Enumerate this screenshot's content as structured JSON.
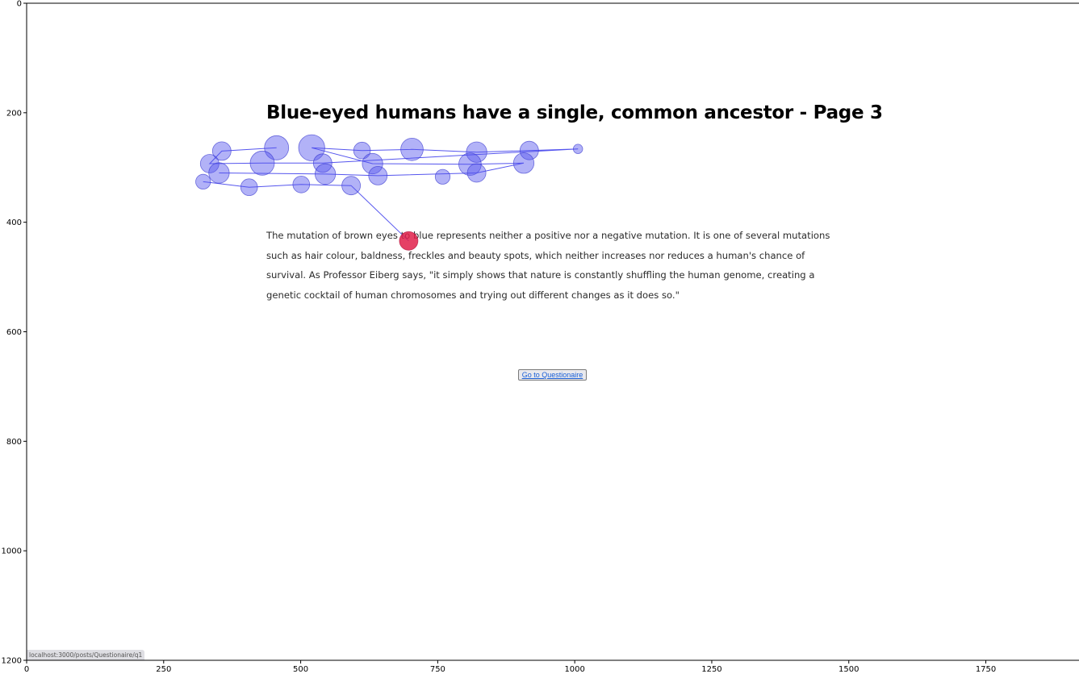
{
  "page": {
    "headline": "Blue-eyed humans have a single, common ancestor - Page 3",
    "body_text": "The mutation of brown eyes to blue represents neither a positive nor a negative mutation. It is one of several mutations such as hair colour, baldness, freckles and beauty spots, which neither increases nor reduces a human's chance of survival. As Professor Eiberg says, \"it simply shows that nature is constantly shuffling the human genome, creating a genetic cocktail of human chromosomes and trying out different changes as it does so.\"",
    "button_label": "Go to Questionaire",
    "status_url": "localhost:3000/posts/Questionaire/q1"
  },
  "chart_data": {
    "type": "scatter",
    "xlim": [
      0,
      1920
    ],
    "ylim": [
      1200,
      0
    ],
    "x_ticks": [
      0,
      250,
      500,
      750,
      1000,
      1250,
      1500,
      1750
    ],
    "y_ticks": [
      0,
      200,
      400,
      600,
      800,
      1000,
      1200
    ],
    "fixation_color": "#5555ee",
    "last_fixation_color": "#e0204a",
    "fixations": [
      {
        "x": 1006,
        "y": 266,
        "r": 5
      },
      {
        "x": 917,
        "y": 269,
        "r": 10
      },
      {
        "x": 821,
        "y": 272,
        "r": 11
      },
      {
        "x": 703,
        "y": 267,
        "r": 12
      },
      {
        "x": 612,
        "y": 269,
        "r": 9
      },
      {
        "x": 520,
        "y": 264,
        "r": 14
      },
      {
        "x": 456,
        "y": 264,
        "r": 13
      },
      {
        "x": 356,
        "y": 270,
        "r": 10
      },
      {
        "x": 334,
        "y": 293,
        "r": 10
      },
      {
        "x": 430,
        "y": 292,
        "r": 13
      },
      {
        "x": 540,
        "y": 292,
        "r": 10
      },
      {
        "x": 631,
        "y": 293,
        "r": 11
      },
      {
        "x": 809,
        "y": 294,
        "r": 12
      },
      {
        "x": 907,
        "y": 292,
        "r": 11
      },
      {
        "x": 351,
        "y": 310,
        "r": 11
      },
      {
        "x": 545,
        "y": 312,
        "r": 11
      },
      {
        "x": 641,
        "y": 315,
        "r": 10
      },
      {
        "x": 759,
        "y": 317,
        "r": 8
      },
      {
        "x": 821,
        "y": 310,
        "r": 10
      },
      {
        "x": 322,
        "y": 326,
        "r": 8
      },
      {
        "x": 406,
        "y": 336,
        "r": 9
      },
      {
        "x": 501,
        "y": 331,
        "r": 9
      },
      {
        "x": 592,
        "y": 333,
        "r": 10
      },
      {
        "x": 697,
        "y": 434,
        "r": 10
      }
    ],
    "scanpath": [
      [
        322,
        326
      ],
      [
        406,
        336
      ],
      [
        501,
        331
      ],
      [
        592,
        333
      ],
      [
        697,
        434
      ]
    ],
    "scanpath_prefix": [
      [
        456,
        264
      ],
      [
        356,
        270
      ],
      [
        334,
        293
      ],
      [
        430,
        292
      ],
      [
        540,
        292
      ],
      [
        1006,
        266
      ],
      [
        917,
        269
      ],
      [
        821,
        272
      ],
      [
        703,
        267
      ],
      [
        612,
        269
      ],
      [
        520,
        264
      ],
      [
        631,
        293
      ],
      [
        809,
        294
      ],
      [
        907,
        292
      ],
      [
        821,
        310
      ],
      [
        641,
        315
      ],
      [
        545,
        312
      ],
      [
        351,
        310
      ]
    ]
  }
}
